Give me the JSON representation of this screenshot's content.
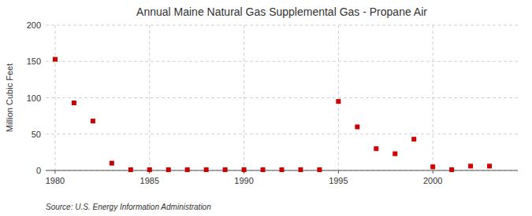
{
  "chart_data": {
    "type": "scatter",
    "title": "Annual Maine Natural Gas Supplemental Gas - Propane Air",
    "ylabel": "Million Cubic Feet",
    "annotations": [
      "Source: U.S. Energy Information Administration"
    ],
    "x": [
      1980,
      1981,
      1982,
      1983,
      1984,
      1985,
      1986,
      1987,
      1988,
      1989,
      1990,
      1991,
      1992,
      1993,
      1994,
      1995,
      1996,
      1997,
      1998,
      1999,
      2000,
      2001,
      2002,
      2003
    ],
    "values": [
      153,
      93,
      68,
      10,
      1,
      1,
      1,
      1,
      1,
      1,
      1,
      1,
      1,
      1,
      1,
      95,
      60,
      30,
      23,
      43,
      5,
      1,
      6,
      6
    ],
    "color": "#cc0000",
    "marker": "square",
    "xlim": [
      1979.5,
      2004.5
    ],
    "ylim": [
      0,
      200
    ],
    "xticks": [
      1980,
      1985,
      1990,
      1995,
      2000
    ],
    "yticks": [
      0,
      50,
      100,
      150,
      200
    ],
    "grid": true
  }
}
